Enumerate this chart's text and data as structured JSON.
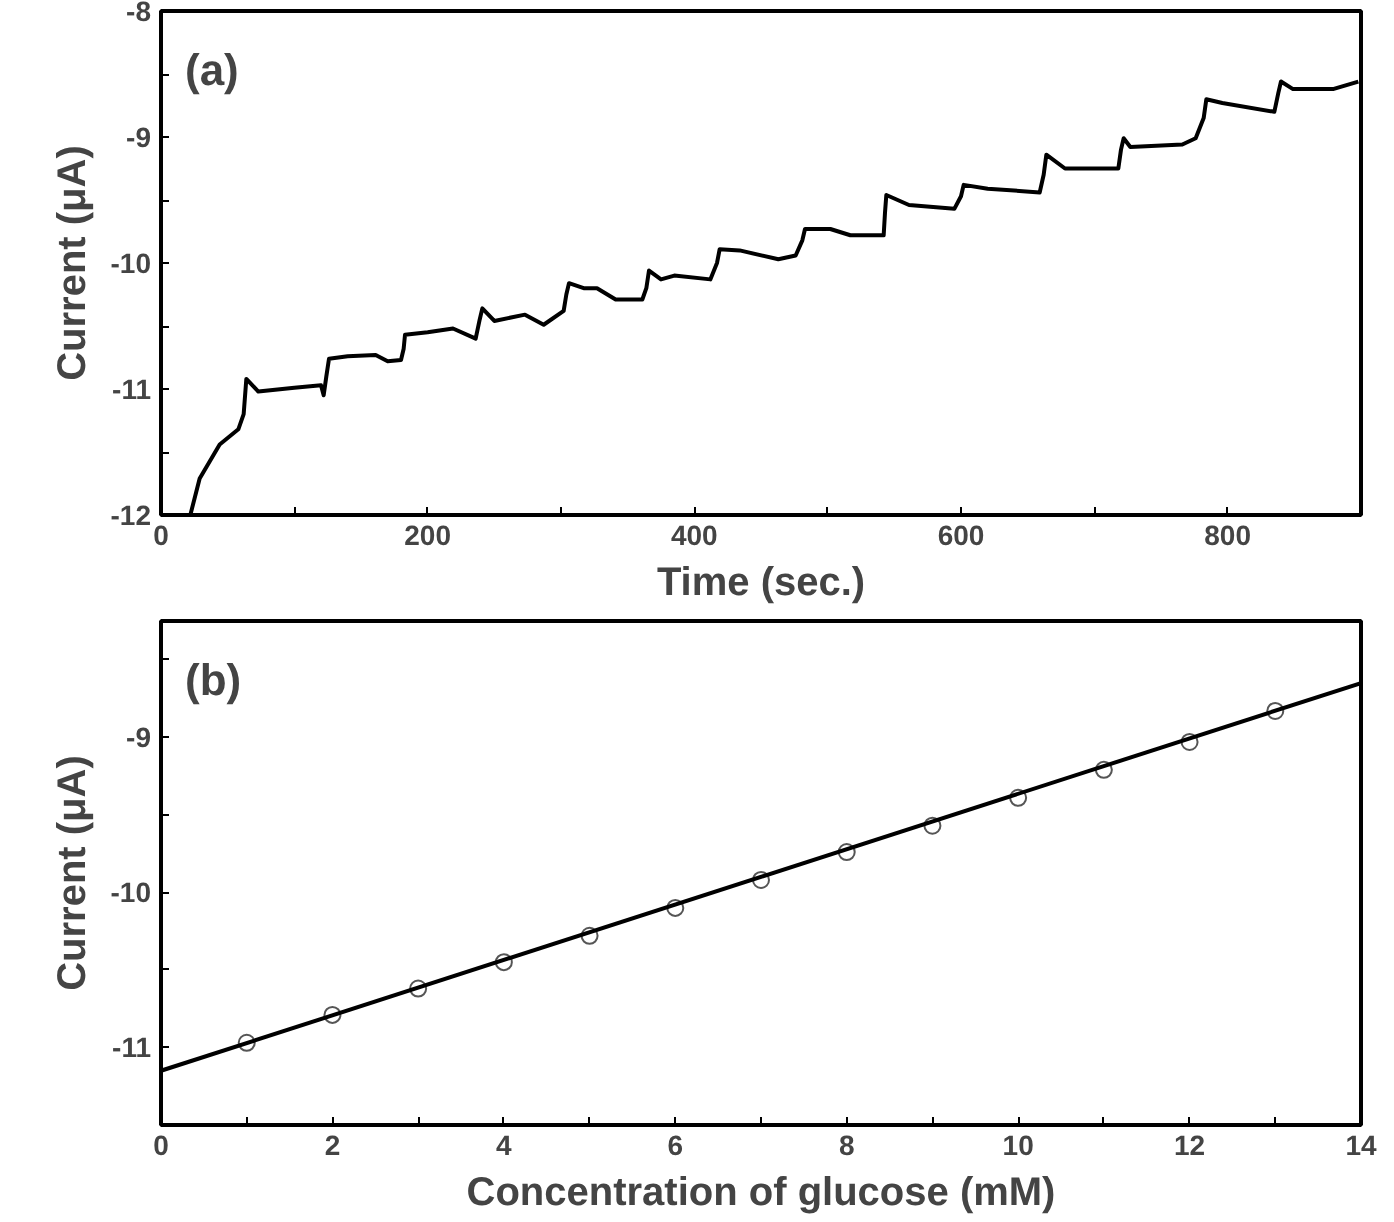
{
  "chart_data": [
    {
      "type": "line",
      "xlabel": "Time (sec.)",
      "ylabel": "Current (μA)",
      "annotations": [
        "(a)"
      ],
      "xlim": [
        0,
        900
      ],
      "ylim": [
        -12,
        -8
      ],
      "xticks": [
        0,
        {
          "value": 100,
          "label": null
        },
        200,
        {
          "value": 300,
          "label": null
        },
        400,
        {
          "value": 500,
          "label": null
        },
        600,
        {
          "value": 700,
          "label": null
        },
        800
      ],
      "yticks": [
        -12,
        {
          "value": -11.5,
          "label": null
        },
        -11,
        {
          "value": -10.5,
          "label": null
        },
        -10,
        {
          "value": -9.5,
          "label": null
        },
        -9,
        {
          "value": -8.5,
          "label": null
        },
        -8
      ],
      "grid": false,
      "series": [
        {
          "color": "#000000",
          "x": [
            22,
            29,
            44,
            58,
            62,
            64,
            73,
            100,
            120,
            122,
            124,
            126,
            140,
            161,
            170,
            180,
            182,
            183,
            200,
            219,
            236,
            239,
            241,
            250,
            273,
            287,
            302,
            304,
            306,
            317,
            327,
            341,
            361,
            364,
            366,
            375,
            385,
            412,
            417,
            419,
            434,
            463,
            476,
            481,
            483,
            502,
            517,
            542,
            543,
            544,
            561,
            595,
            600,
            602,
            620,
            659,
            662,
            664,
            678,
            718,
            720,
            722,
            727,
            766,
            776,
            782,
            784,
            796,
            835,
            838,
            840,
            849,
            879,
            898
          ],
          "values": [
            -12,
            -11.71,
            -11.44,
            -11.32,
            -11.2,
            -10.92,
            -11.02,
            -10.99,
            -10.97,
            -11.05,
            -10.9,
            -10.76,
            -10.74,
            -10.73,
            -10.78,
            -10.77,
            -10.68,
            -10.57,
            -10.55,
            -10.52,
            -10.6,
            -10.45,
            -10.36,
            -10.46,
            -10.41,
            -10.49,
            -10.38,
            -10.25,
            -10.16,
            -10.2,
            -10.2,
            -10.29,
            -10.29,
            -10.2,
            -10.06,
            -10.13,
            -10.1,
            -10.13,
            -10.0,
            -9.89,
            -9.9,
            -9.97,
            -9.94,
            -9.82,
            -9.73,
            -9.73,
            -9.78,
            -9.78,
            -9.6,
            -9.46,
            -9.54,
            -9.57,
            -9.47,
            -9.38,
            -9.41,
            -9.44,
            -9.3,
            -9.14,
            -9.25,
            -9.25,
            -9.1,
            -9.01,
            -9.08,
            -9.06,
            -9.01,
            -8.85,
            -8.7,
            -8.73,
            -8.8,
            -8.65,
            -8.56,
            -8.62,
            -8.62,
            -8.56
          ]
        }
      ]
    },
    {
      "type": "scatter",
      "xlabel": "Concentration of glucose (mM)",
      "ylabel": "Current (μA)",
      "annotations": [
        "(b)"
      ],
      "xlim": [
        0,
        14
      ],
      "ylim": [
        -11.5,
        -8.25
      ],
      "xticks": [
        0,
        {
          "value": 1,
          "label": null
        },
        2,
        {
          "value": 3,
          "label": null
        },
        4,
        {
          "value": 5,
          "label": null
        },
        6,
        {
          "value": 7,
          "label": null
        },
        8,
        {
          "value": 9,
          "label": null
        },
        10,
        {
          "value": 11,
          "label": null
        },
        12,
        {
          "value": 13,
          "label": null
        },
        14
      ],
      "yticks": [
        {
          "value": -11.5,
          "label": null
        },
        -11,
        {
          "value": -10.5,
          "label": null
        },
        -10,
        {
          "value": -9.5,
          "label": null
        },
        -9,
        {
          "value": -8.5,
          "label": null
        }
      ],
      "grid": false,
      "series": [
        {
          "type": "scatter",
          "marker": "circle",
          "color": "#555555",
          "x": [
            1,
            2,
            3,
            4,
            5,
            6,
            7,
            8,
            9,
            10,
            11,
            12,
            13
          ],
          "values": [
            -10.97,
            -10.79,
            -10.62,
            -10.45,
            -10.28,
            -10.1,
            -9.92,
            -9.74,
            -9.57,
            -9.39,
            -9.21,
            -9.03,
            -8.83
          ]
        },
        {
          "type": "line",
          "color": "#000000",
          "x": [
            0,
            14
          ],
          "values": [
            -11.15,
            -8.65
          ]
        }
      ]
    }
  ]
}
